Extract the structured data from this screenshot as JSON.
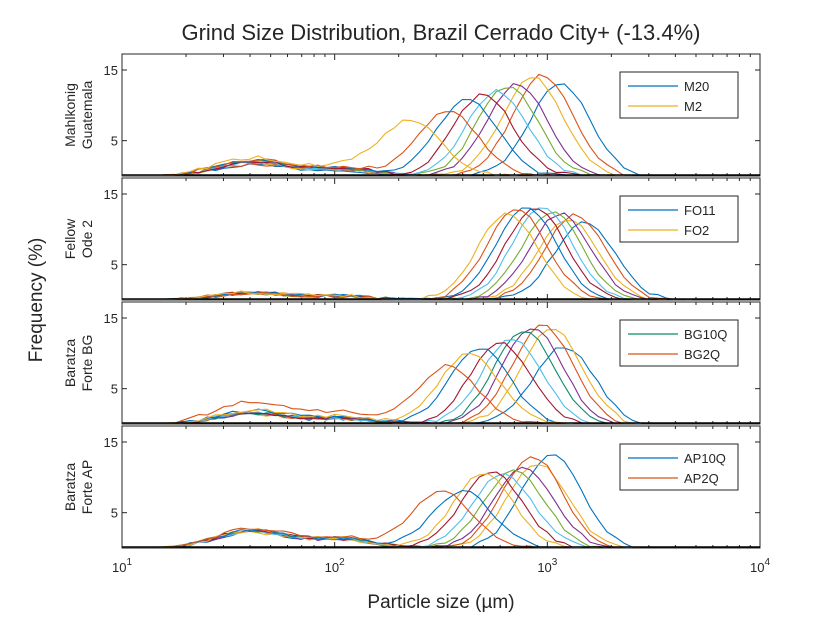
{
  "chart_data": {
    "type": "line",
    "title": "Grind Size Distribution, Brazil Cerrado City+ (-13.4%)",
    "xlabel": "Particle size (µm)",
    "ylabel": "Frequency (%)",
    "xscale": "log",
    "xlim": [
      10,
      10000
    ],
    "ylim": [
      0,
      15
    ],
    "xticks": [
      {
        "base": "10",
        "exp": "1",
        "value": 10
      },
      {
        "base": "10",
        "exp": "2",
        "value": 100
      },
      {
        "base": "10",
        "exp": "3",
        "value": 1000
      },
      {
        "base": "10",
        "exp": "4",
        "value": 10000
      }
    ],
    "yticks": [
      "5",
      "15"
    ],
    "ytick_values": [
      5,
      15
    ],
    "legend_position": "top-right",
    "palette": [
      "#0072BD",
      "#EDB120",
      "#D95319",
      "#7E2F8E",
      "#77AC30",
      "#4DBEEE",
      "#A2142F",
      "#0072BD",
      "#D95319",
      "#EDB120"
    ],
    "panels": [
      {
        "label_lines": [
          "Mahlkonig",
          "Guatemala"
        ],
        "legend": [
          {
            "label": "M20",
            "color": "#0072BD"
          },
          {
            "label": "M2",
            "color": "#EDB120"
          }
        ],
        "series": [
          {
            "name": "M20",
            "color": "#0072BD",
            "peak_x": 1150,
            "peak": 13.0,
            "shoulder": 1.6,
            "tail": 3000
          },
          {
            "color": "#D95319",
            "peak_x": 950,
            "peak": 14.3,
            "shoulder": 1.7,
            "tail": 2700
          },
          {
            "color": "#EDB120",
            "peak_x": 850,
            "peak": 14.0,
            "shoulder": 1.8,
            "tail": 2500
          },
          {
            "color": "#7E2F8E",
            "peak_x": 720,
            "peak": 13.0,
            "shoulder": 1.9,
            "tail": 2200
          },
          {
            "color": "#77AC30",
            "peak_x": 650,
            "peak": 12.7,
            "shoulder": 2.0,
            "tail": 2000
          },
          {
            "color": "#4DBEEE",
            "peak_x": 580,
            "peak": 12.0,
            "shoulder": 2.0,
            "tail": 1900
          },
          {
            "color": "#A2142F",
            "peak_x": 500,
            "peak": 11.5,
            "shoulder": 2.1,
            "tail": 1700
          },
          {
            "color": "#0072BD",
            "peak_x": 420,
            "peak": 11.0,
            "shoulder": 2.2,
            "tail": 1500
          },
          {
            "color": "#D95319",
            "peak_x": 340,
            "peak": 9.2,
            "shoulder": 2.3,
            "tail": 1300
          },
          {
            "name": "M2",
            "color": "#EDB120",
            "peak_x": 230,
            "peak": 7.8,
            "shoulder": 2.6,
            "tail": 1100
          }
        ]
      },
      {
        "label_lines": [
          "Fellow",
          "Ode 2"
        ],
        "legend": [
          {
            "label": "FO11",
            "color": "#0072BD"
          },
          {
            "label": "FO2",
            "color": "#EDB120"
          }
        ],
        "series": [
          {
            "name": "FO11",
            "color": "#0072BD",
            "peak_x": 1500,
            "peak": 11.0,
            "shoulder": 1.0,
            "tail": 5000
          },
          {
            "color": "#D95319",
            "peak_x": 1350,
            "peak": 12.0,
            "shoulder": 1.0,
            "tail": 4300
          },
          {
            "color": "#EDB120",
            "peak_x": 1250,
            "peak": 11.5,
            "shoulder": 1.0,
            "tail": 3800
          },
          {
            "color": "#7E2F8E",
            "peak_x": 1150,
            "peak": 12.2,
            "shoulder": 1.0,
            "tail": 3400
          },
          {
            "color": "#77AC30",
            "peak_x": 1050,
            "peak": 12.5,
            "shoulder": 1.0,
            "tail": 3100
          },
          {
            "color": "#4DBEEE",
            "peak_x": 950,
            "peak": 13.2,
            "shoulder": 1.0,
            "tail": 2800
          },
          {
            "color": "#A2142F",
            "peak_x": 880,
            "peak": 13.0,
            "shoulder": 1.0,
            "tail": 2500
          },
          {
            "color": "#0072BD",
            "peak_x": 800,
            "peak": 13.0,
            "shoulder": 1.0,
            "tail": 2300
          },
          {
            "color": "#D95319",
            "peak_x": 720,
            "peak": 12.8,
            "shoulder": 1.0,
            "tail": 2100
          },
          {
            "name": "FO2",
            "color": "#EDB120",
            "peak_x": 650,
            "peak": 12.2,
            "shoulder": 1.1,
            "tail": 1900
          }
        ]
      },
      {
        "label_lines": [
          "Baratza",
          "Forte BG"
        ],
        "legend": [
          {
            "label": "BG10Q",
            "color": "#0E8A6B"
          },
          {
            "label": "BG2Q",
            "color": "#D95319"
          }
        ],
        "series": [
          {
            "color": "#0072BD",
            "peak_x": 1200,
            "peak": 11.0,
            "shoulder": 1.3,
            "tail": 3000
          },
          {
            "color": "#EDB120",
            "peak_x": 1050,
            "peak": 13.5,
            "shoulder": 1.4,
            "tail": 2800
          },
          {
            "color": "#D95319",
            "peak_x": 950,
            "peak": 14.0,
            "shoulder": 1.4,
            "tail": 2600
          },
          {
            "color": "#7E2F8E",
            "peak_x": 850,
            "peak": 13.5,
            "shoulder": 1.5,
            "tail": 2300
          },
          {
            "name": "BG10Q",
            "color": "#0E8A6B",
            "peak_x": 780,
            "peak": 13.2,
            "shoulder": 1.5,
            "tail": 2100
          },
          {
            "color": "#4DBEEE",
            "peak_x": 680,
            "peak": 12.0,
            "shoulder": 1.6,
            "tail": 1900
          },
          {
            "color": "#A2142F",
            "peak_x": 600,
            "peak": 11.5,
            "shoulder": 1.6,
            "tail": 1700
          },
          {
            "color": "#0072BD",
            "peak_x": 480,
            "peak": 10.8,
            "shoulder": 1.9,
            "tail": 1500
          },
          {
            "color": "#EDB120",
            "peak_x": 430,
            "peak": 10.0,
            "shoulder": 2.0,
            "tail": 1400
          },
          {
            "name": "BG2Q",
            "color": "#D95319",
            "peak_x": 340,
            "peak": 8.2,
            "shoulder": 3.2,
            "tail": 1200
          }
        ]
      },
      {
        "label_lines": [
          "Baratza",
          "Forte AP"
        ],
        "legend": [
          {
            "label": "AP10Q",
            "color": "#0072BD"
          },
          {
            "label": "AP2Q",
            "color": "#D95319"
          }
        ],
        "series": [
          {
            "name": "AP10Q",
            "color": "#0072BD",
            "peak_x": 1050,
            "peak": 13.3,
            "shoulder": 2.2,
            "tail": 2900
          },
          {
            "color": "#EDB120",
            "peak_x": 900,
            "peak": 12.0,
            "shoulder": 2.2,
            "tail": 2600
          },
          {
            "color": "#D95319",
            "peak_x": 850,
            "peak": 13.0,
            "shoulder": 2.3,
            "tail": 2400
          },
          {
            "color": "#7E2F8E",
            "peak_x": 780,
            "peak": 11.3,
            "shoulder": 2.3,
            "tail": 2200
          },
          {
            "color": "#77AC30",
            "peak_x": 700,
            "peak": 11.0,
            "shoulder": 2.4,
            "tail": 2000
          },
          {
            "color": "#4DBEEE",
            "peak_x": 620,
            "peak": 10.5,
            "shoulder": 2.4,
            "tail": 1800
          },
          {
            "color": "#A2142F",
            "peak_x": 550,
            "peak": 10.8,
            "shoulder": 2.5,
            "tail": 1600
          },
          {
            "color": "#EDB120",
            "peak_x": 500,
            "peak": 10.5,
            "shoulder": 2.5,
            "tail": 1450
          },
          {
            "color": "#0072BD",
            "peak_x": 400,
            "peak": 8.0,
            "shoulder": 2.5,
            "tail": 1300
          },
          {
            "name": "AP2Q",
            "color": "#D95319",
            "peak_x": 320,
            "peak": 8.0,
            "shoulder": 2.8,
            "tail": 1150
          }
        ]
      }
    ]
  }
}
